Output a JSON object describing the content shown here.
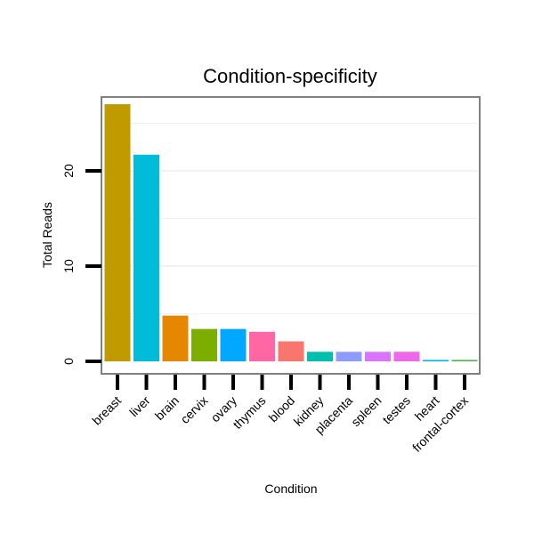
{
  "chart_data": {
    "type": "bar",
    "title": "Condition-specificity",
    "xlabel": "Condition",
    "ylabel": "Total Reads",
    "ylim": [
      0,
      27
    ],
    "yticks": [
      0,
      10,
      20
    ],
    "grid": true,
    "categories": [
      "breast",
      "liver",
      "brain",
      "cervix",
      "ovary",
      "thymus",
      "blood",
      "kidney",
      "placenta",
      "spleen",
      "testes",
      "heart",
      "frontal-cortex"
    ],
    "values": [
      27,
      21.7,
      4.8,
      3.4,
      3.4,
      3.1,
      2.1,
      1.0,
      1.0,
      1.0,
      1.0,
      0.15,
      0.15
    ],
    "colors": [
      "#C09B00",
      "#00BCD8",
      "#E58700",
      "#7CAE00",
      "#00A9FF",
      "#FF67A4",
      "#F8766D",
      "#00BFAC",
      "#8E9CFF",
      "#D874FD",
      "#EF67EB",
      "#00B8E7",
      "#4BB54A"
    ]
  }
}
